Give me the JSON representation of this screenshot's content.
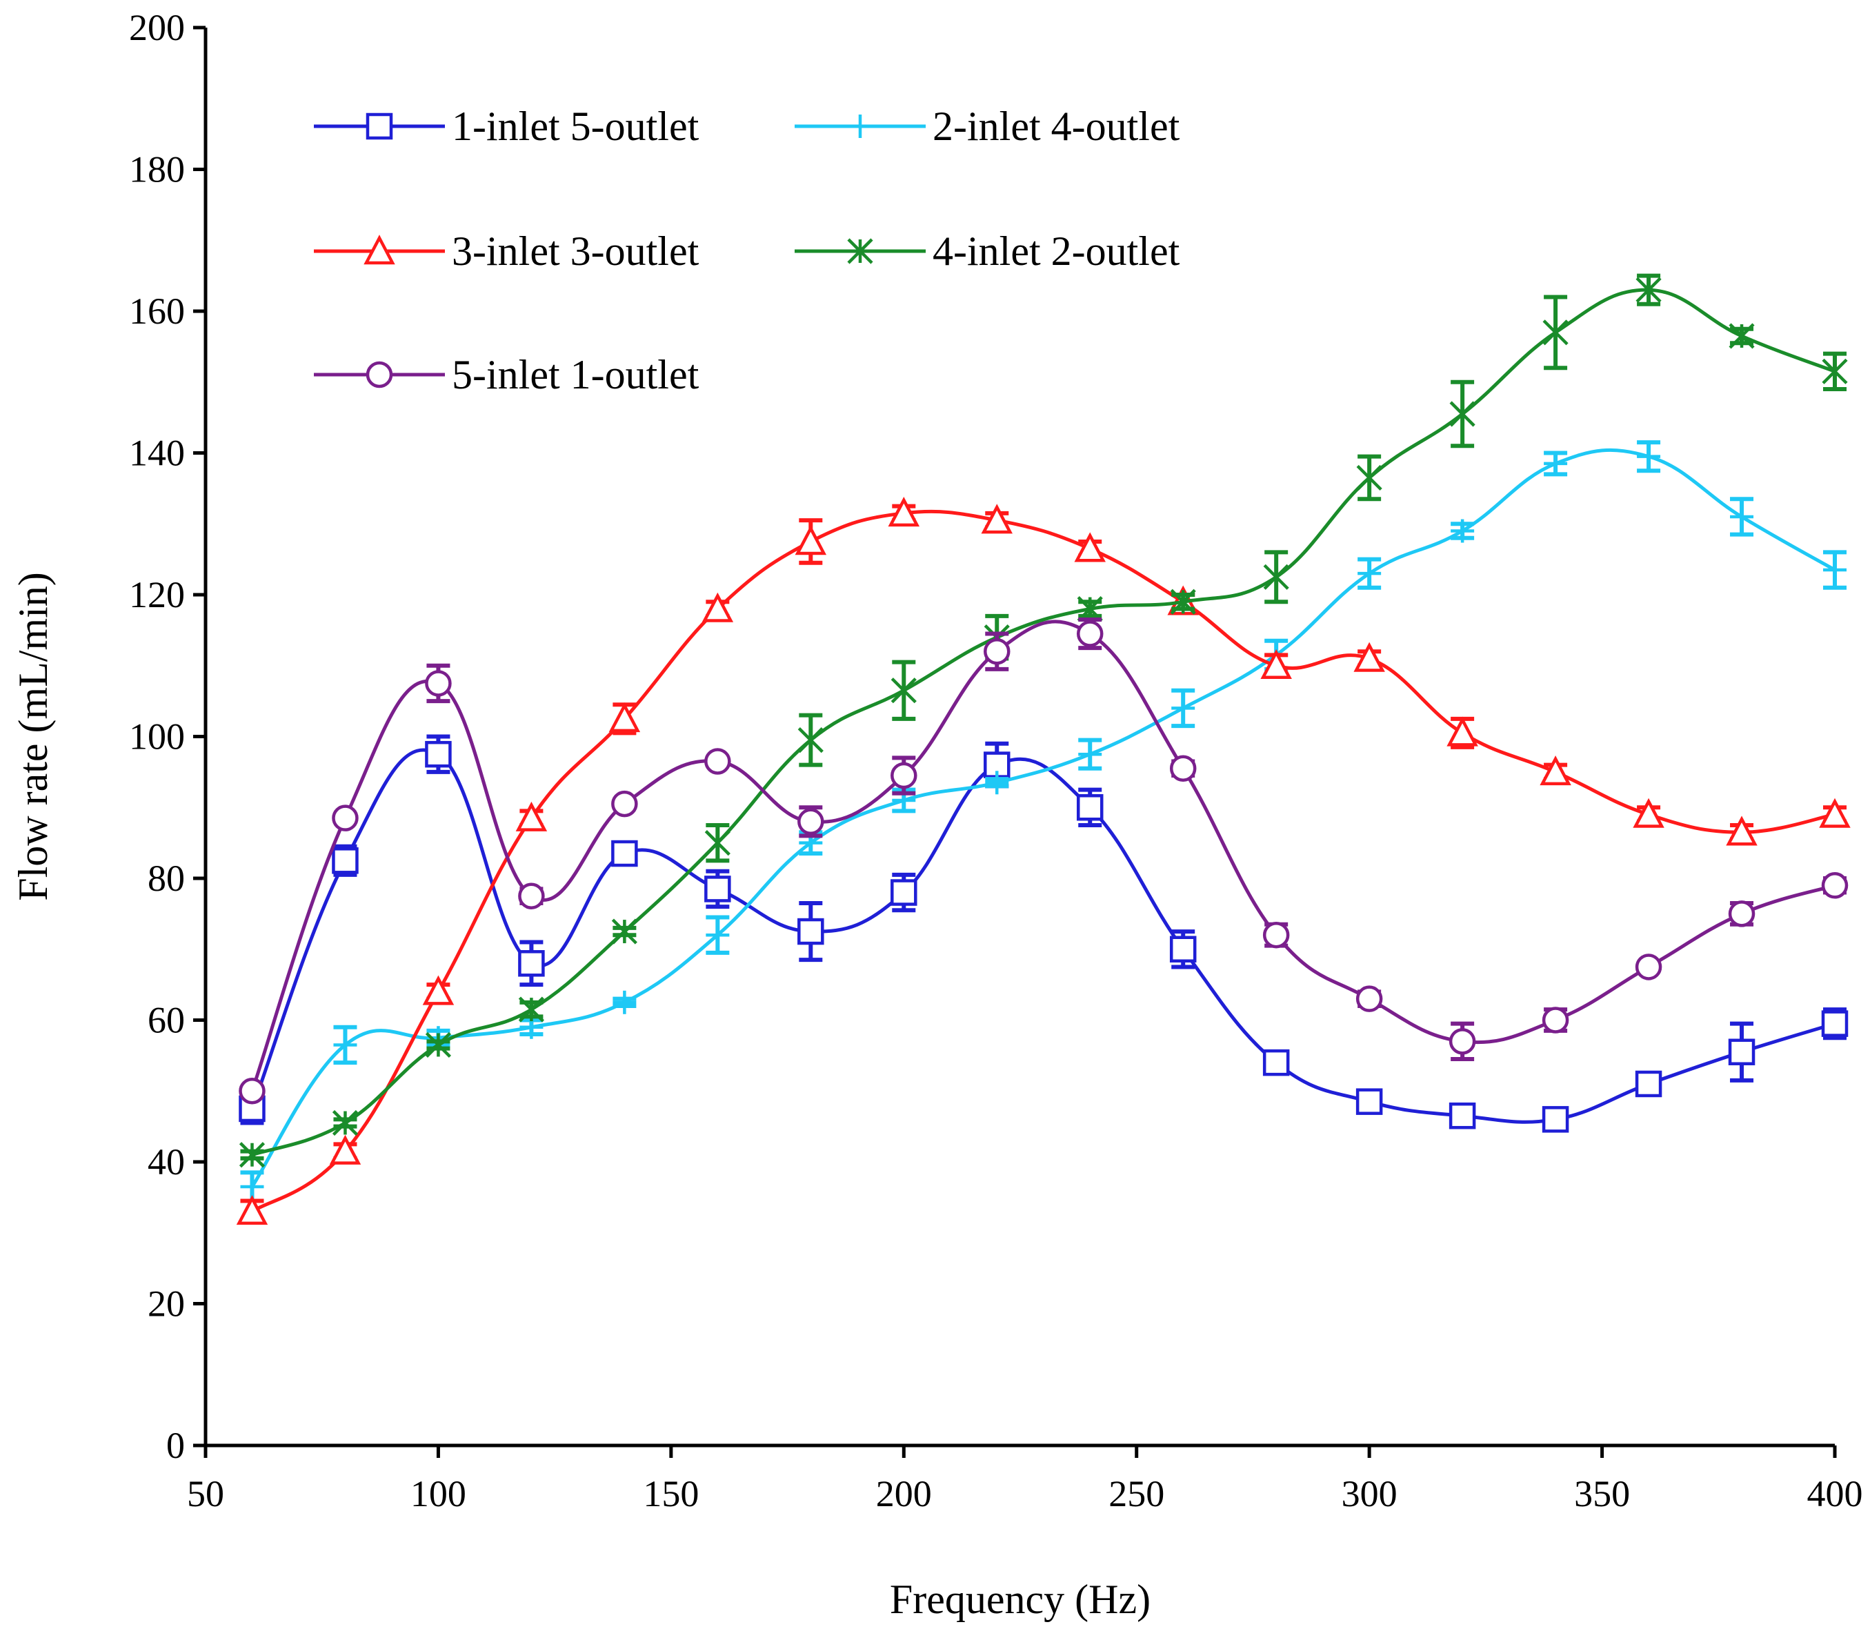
{
  "chart_data": {
    "type": "line",
    "title": "",
    "xlabel": "Frequency (Hz)",
    "ylabel": "Flow rate (mL/min)",
    "xlim": [
      50,
      400
    ],
    "ylim": [
      0,
      200
    ],
    "xticks": [
      50,
      100,
      150,
      200,
      250,
      300,
      350,
      400
    ],
    "yticks": [
      0,
      20,
      40,
      60,
      80,
      100,
      120,
      140,
      160,
      180,
      200
    ],
    "xtick_labels": [
      "50",
      "100",
      "150",
      "200",
      "250",
      "300",
      "350",
      "400"
    ],
    "ytick_labels": [
      "0",
      "20",
      "40",
      "60",
      "80",
      "100",
      "120",
      "140",
      "160",
      "180",
      "200"
    ],
    "grid": false,
    "legend_position": "top-left",
    "x": [
      60,
      80,
      100,
      120,
      140,
      160,
      180,
      200,
      220,
      240,
      260,
      280,
      300,
      320,
      340,
      360,
      380,
      400
    ],
    "series": [
      {
        "name": "1-inlet 5-outlet",
        "color": "#1f1fd6",
        "marker": "square",
        "values": [
          47.5,
          82.5,
          97.5,
          68,
          83.5,
          78.5,
          72.5,
          78,
          96,
          90,
          70,
          54,
          48.5,
          46.5,
          46,
          51,
          55.5,
          59.5
        ],
        "errors": [
          2,
          2,
          2.5,
          3,
          1.5,
          2.5,
          4,
          2.5,
          3,
          2.5,
          2.5,
          0.5,
          0.5,
          0.5,
          0.5,
          0.5,
          4,
          2
        ]
      },
      {
        "name": "2-inlet 4-outlet",
        "color": "#1ec8f5",
        "marker": "plus",
        "values": [
          36.5,
          56.5,
          57.5,
          59,
          62.5,
          72,
          85,
          91,
          93.5,
          97.5,
          104,
          111.5,
          123,
          129,
          138.5,
          139.5,
          131,
          123.5
        ],
        "errors": [
          2,
          2.5,
          1,
          1,
          0.5,
          2.5,
          1.5,
          1.5,
          0.5,
          2,
          2.5,
          2,
          2,
          1,
          1.5,
          2,
          2.5,
          2.5
        ]
      },
      {
        "name": "3-inlet 3-outlet",
        "color": "#ff1a1a",
        "marker": "triangle",
        "values": [
          33,
          41.5,
          64,
          88.5,
          102.5,
          118,
          127.5,
          131.5,
          130.5,
          126.5,
          119,
          110,
          111,
          100.5,
          95,
          89,
          86.5,
          89
        ],
        "errors": [
          1.5,
          1,
          1,
          1,
          2,
          1,
          3,
          1,
          1,
          1,
          1,
          1.5,
          1,
          2,
          1,
          1,
          1,
          1
        ]
      },
      {
        "name": "4-inlet 2-outlet",
        "color": "#1a8c2a",
        "marker": "star",
        "values": [
          41,
          45.5,
          56.5,
          61.5,
          72.5,
          85,
          99.5,
          106.5,
          114,
          118,
          119,
          122.5,
          136.5,
          145.5,
          157,
          163,
          156.5,
          151.5
        ],
        "errors": [
          0.5,
          0.5,
          0.5,
          1,
          0.5,
          2.5,
          3.5,
          4,
          3,
          1,
          1,
          3.5,
          3,
          4.5,
          5,
          2,
          1,
          2.5
        ]
      },
      {
        "name": "5-inlet 1-outlet",
        "color": "#7a1f8c",
        "marker": "circle",
        "values": [
          50,
          88.5,
          107.5,
          77.5,
          90.5,
          96.5,
          88,
          94.5,
          112,
          114.5,
          95.5,
          72,
          63,
          57,
          60,
          67.5,
          75,
          79
        ],
        "errors": [
          0.5,
          0.5,
          2.5,
          1,
          0.5,
          0.5,
          2,
          2.5,
          2.5,
          2,
          1,
          1.5,
          1,
          2.5,
          1.5,
          0.5,
          1.5,
          1
        ]
      }
    ]
  }
}
